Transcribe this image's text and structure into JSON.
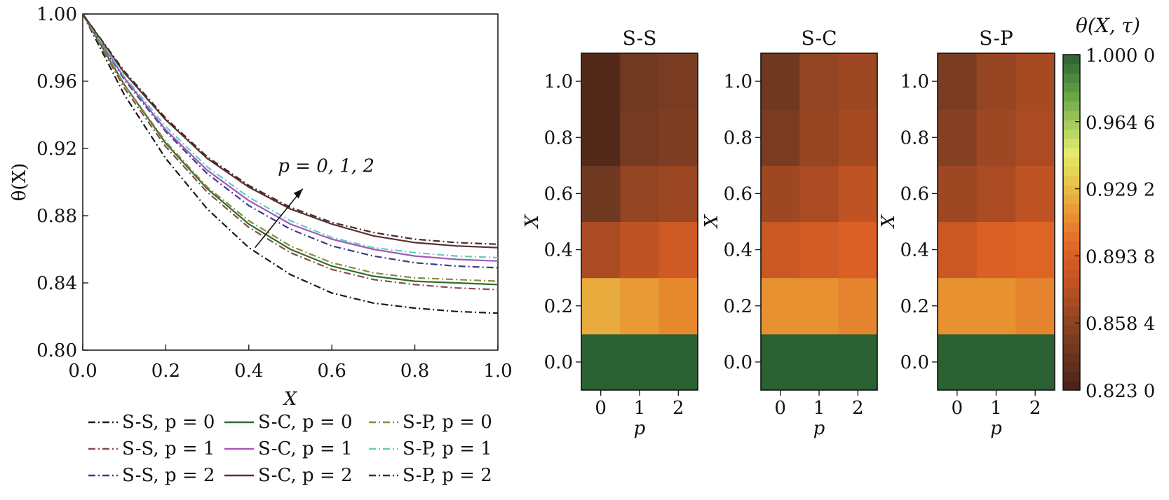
{
  "chart_data": [
    {
      "type": "line",
      "xlabel": "X",
      "ylabel": "θ(X)",
      "xlim": [
        0.0,
        1.0
      ],
      "ylim": [
        0.8,
        1.0
      ],
      "xticks": [
        "0.0",
        "0.2",
        "0.4",
        "0.6",
        "0.8",
        "1.0"
      ],
      "yticks": [
        "0.80",
        "0.84",
        "0.88",
        "0.92",
        "0.96",
        "1.00"
      ],
      "annotation": "p = 0, 1, 2",
      "legend": "bottom",
      "x": [
        0.0,
        0.1,
        0.2,
        0.3,
        0.4,
        0.5,
        0.6,
        0.7,
        0.8,
        0.9,
        1.0
      ],
      "series": [
        {
          "name": "S-S, p = 0",
          "color": "#1a1a1a",
          "dash": "dashdot",
          "values": [
            1.0,
            0.952,
            0.914,
            0.884,
            0.861,
            0.845,
            0.834,
            0.828,
            0.825,
            0.823,
            0.822
          ]
        },
        {
          "name": "S-S, p = 1",
          "color": "#8b4a4a",
          "dash": "dashdot",
          "values": [
            1.0,
            0.956,
            0.921,
            0.894,
            0.873,
            0.858,
            0.848,
            0.842,
            0.839,
            0.837,
            0.836
          ]
        },
        {
          "name": "S-S, p = 2",
          "color": "#3b3b8a",
          "dash": "dashdot",
          "values": [
            1.0,
            0.961,
            0.93,
            0.905,
            0.886,
            0.872,
            0.862,
            0.856,
            0.852,
            0.85,
            0.849
          ]
        },
        {
          "name": "S-C, p = 0",
          "color": "#2e6e2e",
          "dash": "solid",
          "values": [
            1.0,
            0.958,
            0.923,
            0.896,
            0.875,
            0.86,
            0.85,
            0.844,
            0.841,
            0.84,
            0.839
          ]
        },
        {
          "name": "S-C, p = 1",
          "color": "#a658b8",
          "dash": "solid",
          "values": [
            1.0,
            0.962,
            0.931,
            0.907,
            0.889,
            0.875,
            0.866,
            0.86,
            0.856,
            0.854,
            0.853
          ]
        },
        {
          "name": "S-C, p = 2",
          "color": "#5a3030",
          "dash": "solid",
          "values": [
            1.0,
            0.965,
            0.937,
            0.914,
            0.897,
            0.884,
            0.875,
            0.868,
            0.864,
            0.862,
            0.861
          ]
        },
        {
          "name": "S-P, p = 0",
          "color": "#8a8a3a",
          "dash": "dashdot",
          "values": [
            1.0,
            0.958,
            0.924,
            0.897,
            0.877,
            0.862,
            0.852,
            0.846,
            0.843,
            0.842,
            0.841
          ]
        },
        {
          "name": "S-P, p = 1",
          "color": "#5fd0c0",
          "dash": "dashdot",
          "values": [
            1.0,
            0.963,
            0.933,
            0.909,
            0.891,
            0.877,
            0.867,
            0.861,
            0.858,
            0.856,
            0.855
          ]
        },
        {
          "name": "S-P, p = 2",
          "color": "#4a2a2a",
          "dash": "dashdot",
          "values": [
            1.0,
            0.966,
            0.938,
            0.915,
            0.898,
            0.885,
            0.876,
            0.87,
            0.866,
            0.864,
            0.863
          ]
        }
      ]
    },
    {
      "type": "heatmap",
      "title": "S-S",
      "xlabel": "p",
      "ylabel": "X",
      "columns": [
        0,
        1,
        2
      ],
      "rows": [
        0.0,
        0.2,
        0.4,
        0.6,
        0.8,
        1.0
      ],
      "values": [
        [
          1.0,
          1.0,
          1.0
        ],
        [
          0.924,
          0.918,
          0.912
        ],
        [
          0.87,
          0.88,
          0.888
        ],
        [
          0.845,
          0.86,
          0.864
        ],
        [
          0.83,
          0.848,
          0.852
        ],
        [
          0.83,
          0.846,
          0.85
        ]
      ]
    },
    {
      "type": "heatmap",
      "title": "S-C",
      "xlabel": "p",
      "ylabel": "X",
      "columns": [
        0,
        1,
        2
      ],
      "rows": [
        0.0,
        0.2,
        0.4,
        0.6,
        0.8,
        1.0
      ],
      "values": [
        [
          1.0,
          1.0,
          1.0
        ],
        [
          0.915,
          0.915,
          0.91
        ],
        [
          0.885,
          0.89,
          0.895
        ],
        [
          0.865,
          0.87,
          0.88
        ],
        [
          0.85,
          0.862,
          0.868
        ],
        [
          0.845,
          0.86,
          0.865
        ]
      ]
    },
    {
      "type": "heatmap",
      "title": "S-P",
      "xlabel": "p",
      "ylabel": "X",
      "columns": [
        0,
        1,
        2
      ],
      "rows": [
        0.0,
        0.2,
        0.4,
        0.6,
        0.8,
        1.0
      ],
      "values": [
        [
          1.0,
          1.0,
          1.0
        ],
        [
          0.915,
          0.915,
          0.91
        ],
        [
          0.885,
          0.895,
          0.898
        ],
        [
          0.865,
          0.87,
          0.88
        ],
        [
          0.855,
          0.865,
          0.87
        ],
        [
          0.85,
          0.862,
          0.868
        ]
      ]
    },
    {
      "type": "colorbar",
      "title": "θ(X, τ)",
      "range": [
        0.823,
        1.0
      ],
      "tick_values": [
        1.0,
        0.9646,
        0.9292,
        0.8938,
        0.8584,
        0.823
      ],
      "tick_labels": [
        "1.000 0",
        "0.964 6",
        "0.929 2",
        "0.893 8",
        "0.858 4",
        "0.823 0"
      ]
    }
  ]
}
